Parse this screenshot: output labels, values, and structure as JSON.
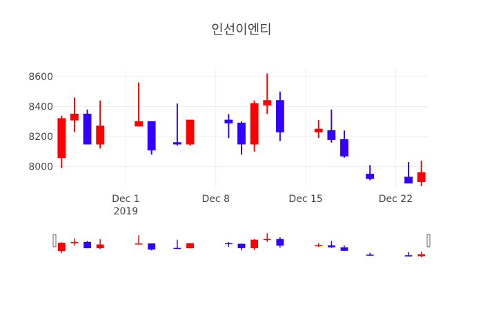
{
  "chart_data": {
    "type": "candlestick",
    "title": "인선이엔티",
    "x_ticks": [
      {
        "date": "2019-12-01",
        "label": "Dec 1",
        "sublabel": "2019"
      },
      {
        "date": "2019-12-08",
        "label": "Dec 8",
        "sublabel": ""
      },
      {
        "date": "2019-12-15",
        "label": "Dec 15",
        "sublabel": ""
      },
      {
        "date": "2019-12-22",
        "label": "Dec 22",
        "sublabel": ""
      }
    ],
    "y_ticks": [
      8000,
      8200,
      8400,
      8600
    ],
    "xlim": [
      "2019-11-26",
      "2019-12-24"
    ],
    "ylim": [
      7870,
      8650
    ],
    "increasing_color": "#ff0000",
    "decreasing_color": "#3300ff",
    "rangeslider": true,
    "grid": true,
    "candles": [
      {
        "date": "2019-11-26",
        "open": 8060,
        "high": 8340,
        "low": 7990,
        "close": 8320
      },
      {
        "date": "2019-11-27",
        "open": 8310,
        "high": 8460,
        "low": 8230,
        "close": 8350
      },
      {
        "date": "2019-11-28",
        "open": 8350,
        "high": 8380,
        "low": 8150,
        "close": 8150
      },
      {
        "date": "2019-11-29",
        "open": 8150,
        "high": 8440,
        "low": 8120,
        "close": 8270
      },
      {
        "date": "2019-12-02",
        "open": 8270,
        "high": 8560,
        "low": 8270,
        "close": 8300
      },
      {
        "date": "2019-12-03",
        "open": 8300,
        "high": 8300,
        "low": 8080,
        "close": 8110
      },
      {
        "date": "2019-12-05",
        "open": 8160,
        "high": 8420,
        "low": 8140,
        "close": 8150
      },
      {
        "date": "2019-12-06",
        "open": 8150,
        "high": 8310,
        "low": 8140,
        "close": 8310
      },
      {
        "date": "2019-12-09",
        "open": 8310,
        "high": 8350,
        "low": 8190,
        "close": 8290
      },
      {
        "date": "2019-12-10",
        "open": 8290,
        "high": 8300,
        "low": 8080,
        "close": 8150
      },
      {
        "date": "2019-12-11",
        "open": 8150,
        "high": 8440,
        "low": 8100,
        "close": 8420
      },
      {
        "date": "2019-12-12",
        "open": 8410,
        "high": 8620,
        "low": 8350,
        "close": 8440
      },
      {
        "date": "2019-12-13",
        "open": 8440,
        "high": 8500,
        "low": 8170,
        "close": 8230
      },
      {
        "date": "2019-12-16",
        "open": 8230,
        "high": 8310,
        "low": 8190,
        "close": 8250
      },
      {
        "date": "2019-12-17",
        "open": 8240,
        "high": 8380,
        "low": 8160,
        "close": 8180
      },
      {
        "date": "2019-12-18",
        "open": 8180,
        "high": 8240,
        "low": 8060,
        "close": 8070
      },
      {
        "date": "2019-12-20",
        "open": 7950,
        "high": 8010,
        "low": 7910,
        "close": 7920
      },
      {
        "date": "2019-12-23",
        "open": 7930,
        "high": 8030,
        "low": 7890,
        "close": 7890
      },
      {
        "date": "2019-12-24",
        "open": 7900,
        "high": 8040,
        "low": 7870,
        "close": 7960
      }
    ]
  }
}
